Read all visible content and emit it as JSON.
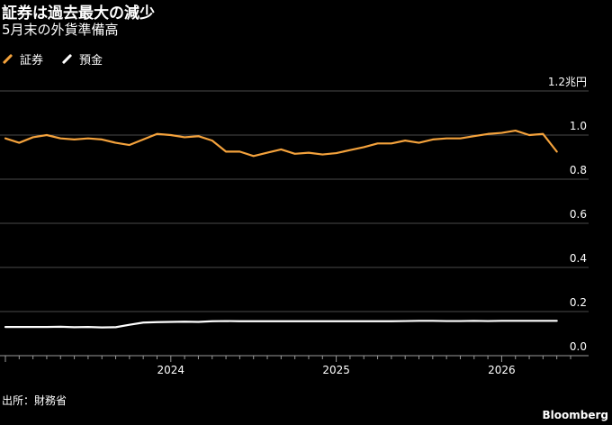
{
  "header": {
    "title": "証券は過去最大の減少",
    "subtitle": "5月末の外貨準備高"
  },
  "legend": [
    {
      "label": "証券",
      "color": "#f4a23c"
    },
    {
      "label": "預金",
      "color": "#ffffff"
    }
  ],
  "footer": {
    "source": "出所：財務省",
    "brand": "Bloomberg"
  },
  "chart_data": {
    "type": "line",
    "title": "証券は過去最大の減少",
    "subtitle": "5月末の外貨準備高",
    "unit_label": "1.2兆円",
    "ylim": [
      0,
      1.2
    ],
    "y_ticks": [
      0.0,
      0.2,
      0.4,
      0.6,
      0.8,
      1.0
    ],
    "y_tick_labels": [
      "0.0",
      "0.2",
      "0.4",
      "0.6",
      "0.8",
      "1.0"
    ],
    "x_range": [
      "2023-01",
      "2026-06"
    ],
    "x_ticks": [
      "2024",
      "2025",
      "2026"
    ],
    "grid": true,
    "legend_position": "top-left",
    "x": [
      "2023-01",
      "2023-02",
      "2023-03",
      "2023-04",
      "2023-05",
      "2023-06",
      "2023-07",
      "2023-08",
      "2023-09",
      "2023-10",
      "2023-11",
      "2023-12",
      "2024-01",
      "2024-02",
      "2024-03",
      "2024-04",
      "2024-05",
      "2024-06",
      "2024-07",
      "2024-08",
      "2024-09",
      "2024-10",
      "2024-11",
      "2024-12",
      "2025-01",
      "2025-02",
      "2025-03",
      "2025-04",
      "2025-05",
      "2025-06",
      "2025-07",
      "2025-08",
      "2025-09",
      "2025-10",
      "2025-11",
      "2025-12",
      "2026-01",
      "2026-02",
      "2026-03",
      "2026-04",
      "2026-05"
    ],
    "series": [
      {
        "name": "証券",
        "color": "#f4a23c",
        "values": [
          0.985,
          0.965,
          0.99,
          1.0,
          0.985,
          0.98,
          0.985,
          0.98,
          0.965,
          0.955,
          0.98,
          1.005,
          1.0,
          0.99,
          0.995,
          0.975,
          0.925,
          0.925,
          0.905,
          0.92,
          0.935,
          0.915,
          0.92,
          0.912,
          0.918,
          0.932,
          0.945,
          0.962,
          0.962,
          0.975,
          0.965,
          0.98,
          0.985,
          0.985,
          0.995,
          1.005,
          1.01,
          1.02,
          1.0,
          1.005,
          0.925
        ]
      },
      {
        "name": "預金",
        "color": "#ffffff",
        "values": [
          0.13,
          0.13,
          0.13,
          0.13,
          0.131,
          0.129,
          0.13,
          0.128,
          0.129,
          0.14,
          0.15,
          0.152,
          0.153,
          0.154,
          0.153,
          0.156,
          0.157,
          0.156,
          0.156,
          0.156,
          0.156,
          0.156,
          0.156,
          0.156,
          0.156,
          0.156,
          0.156,
          0.156,
          0.156,
          0.157,
          0.158,
          0.158,
          0.157,
          0.157,
          0.158,
          0.157,
          0.158,
          0.158,
          0.158,
          0.158,
          0.158
        ]
      }
    ]
  }
}
